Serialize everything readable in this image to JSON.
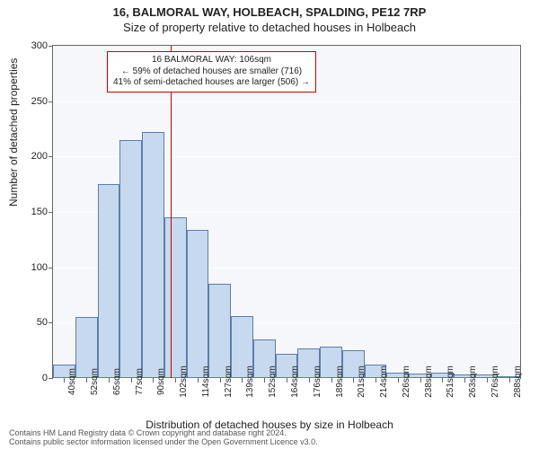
{
  "title": "16, BALMORAL WAY, HOLBEACH, SPALDING, PE12 7RP",
  "subtitle": "Size of property relative to detached houses in Holbeach",
  "ylabel": "Number of detached properties",
  "xlabel": "Distribution of detached houses by size in Holbeach",
  "footer_line1": "Contains HM Land Registry data © Crown copyright and database right 2024.",
  "footer_line2": "Contains public sector information licensed under the Open Government Licence v3.0.",
  "chart": {
    "type": "histogram",
    "background_color": "#f5f7fb",
    "grid_color": "#ffffff",
    "bar_fill": "#c7d9ee",
    "bar_border": "#5b7fa9",
    "marker_color": "#cc0000",
    "ylim": [
      0,
      300
    ],
    "yticks": [
      0,
      50,
      100,
      150,
      200,
      250,
      300
    ],
    "xtick_labels": [
      "40sqm",
      "52sqm",
      "65sqm",
      "77sqm",
      "90sqm",
      "102sqm",
      "114sqm",
      "127sqm",
      "139sqm",
      "152sqm",
      "164sqm",
      "176sqm",
      "189sqm",
      "201sqm",
      "214sqm",
      "226sqm",
      "238sqm",
      "251sqm",
      "263sqm",
      "276sqm",
      "288sqm"
    ],
    "values": [
      12,
      55,
      175,
      215,
      222,
      145,
      134,
      85,
      56,
      35,
      22,
      27,
      28,
      25,
      12,
      5,
      4,
      5,
      3,
      3,
      2
    ],
    "marker_bin_index": 5,
    "bar_count": 21
  },
  "annotation": {
    "line1": "16 BALMORAL WAY: 106sqm",
    "line2": "← 59% of detached houses are smaller (716)",
    "line3": "41% of semi-detached houses are larger (506) →"
  }
}
